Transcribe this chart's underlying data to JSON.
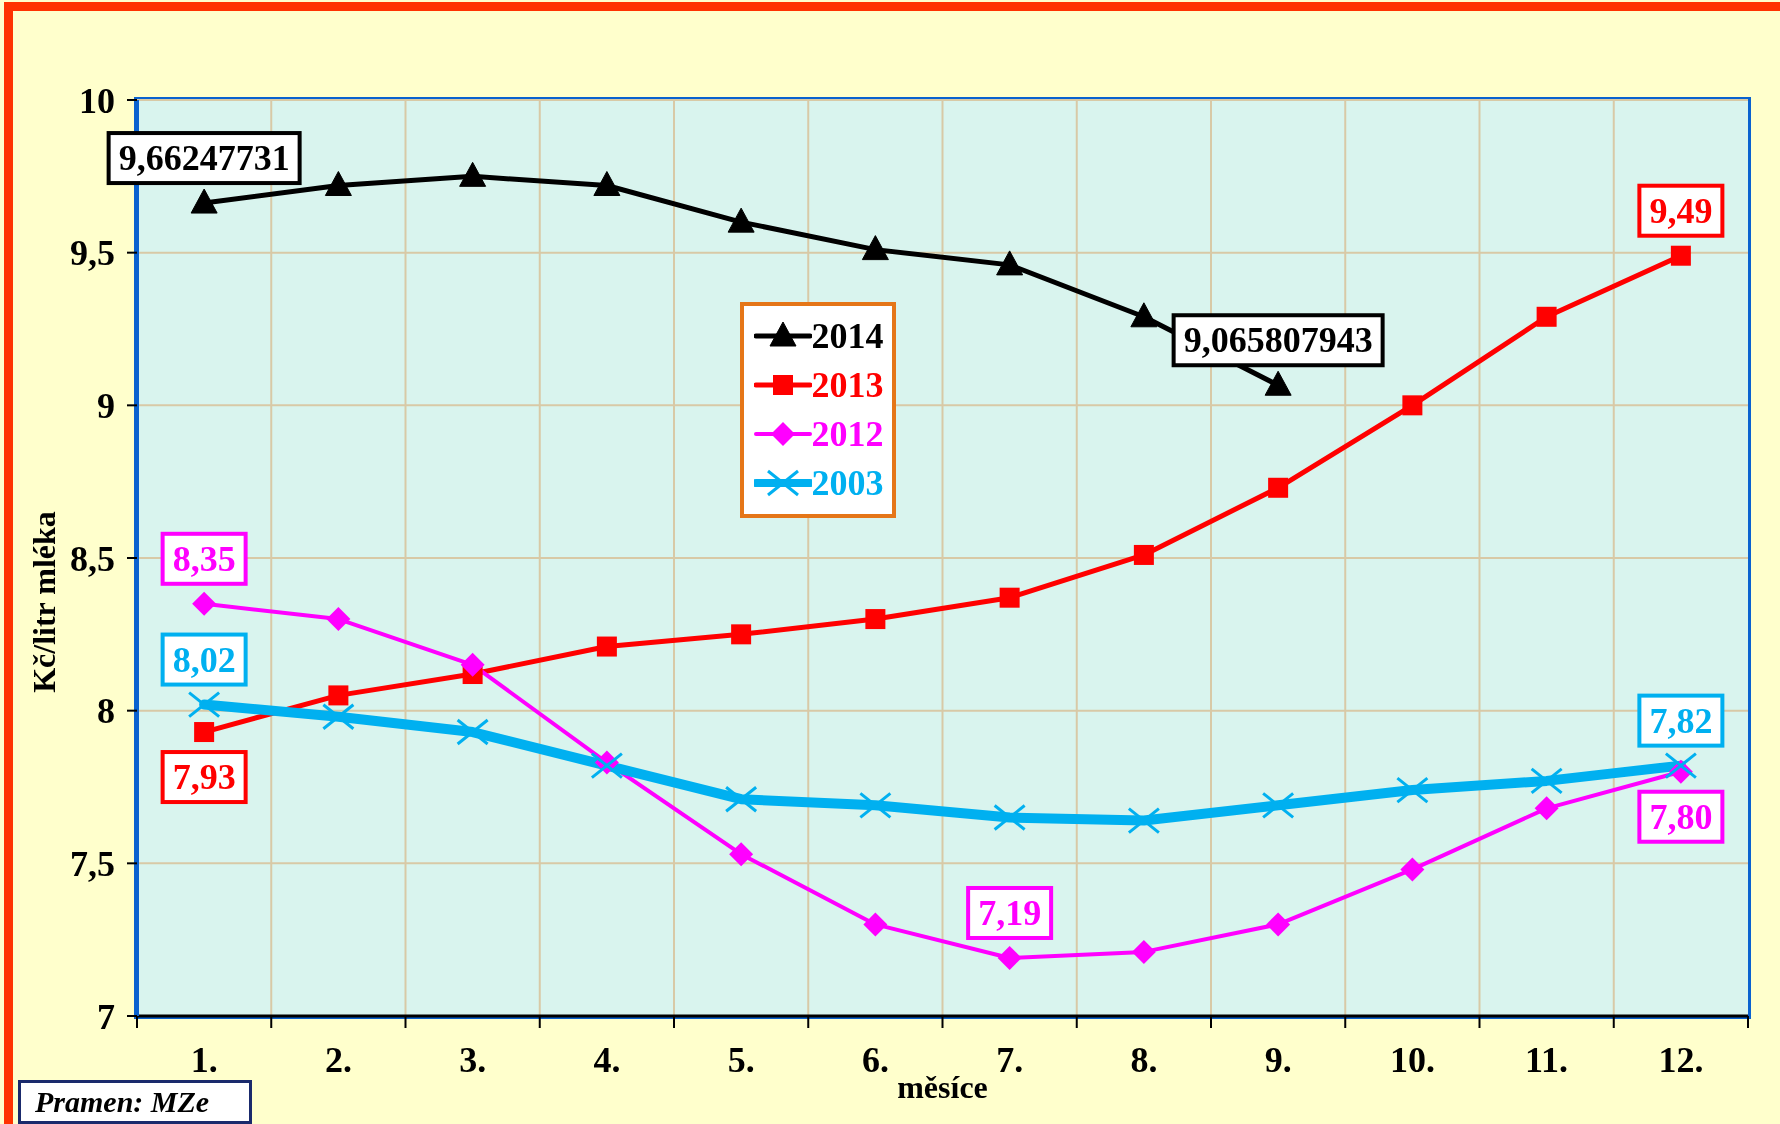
{
  "chart_data": {
    "type": "line",
    "xlabel": "měsíce",
    "ylabel": "Kč/litr mléka",
    "categories": [
      "1.",
      "2.",
      "3.",
      "4.",
      "5.",
      "6.",
      "7.",
      "8.",
      "9.",
      "10.",
      "11.",
      "12."
    ],
    "ylim": [
      7,
      10
    ],
    "yticks": [
      7,
      {
        "value": 7.5,
        "label": "7,5"
      },
      8,
      {
        "value": 8.5,
        "label": "8,5"
      },
      9,
      {
        "value": 9.5,
        "label": "9,5"
      },
      10
    ],
    "grid": true,
    "legend": "top",
    "line_style": "solid",
    "annotations": [
      "Pramen: MZe"
    ],
    "series": [
      {
        "name": "2014",
        "color": "#000000",
        "marker": "triangle",
        "values": [
          9.66247731,
          9.72,
          9.75,
          9.72,
          9.6,
          9.51,
          9.46,
          9.29,
          9.065807943,
          null,
          null,
          null
        ],
        "value_labels": [
          "9,66247731",
          null,
          null,
          null,
          null,
          null,
          null,
          null,
          "9,065807943",
          null,
          null,
          null
        ]
      },
      {
        "name": "2013",
        "color": "#ff0000",
        "marker": "square",
        "values": [
          7.93,
          8.05,
          8.12,
          8.21,
          8.25,
          8.3,
          8.37,
          8.51,
          8.73,
          9.0,
          9.29,
          9.49
        ],
        "value_labels": [
          "7,93",
          null,
          null,
          null,
          null,
          null,
          null,
          null,
          null,
          null,
          null,
          "9,49"
        ]
      },
      {
        "name": "2012",
        "color": "#ff00ff",
        "marker": "diamond",
        "values": [
          8.35,
          8.3,
          8.15,
          7.83,
          7.53,
          7.3,
          7.19,
          7.21,
          7.3,
          7.48,
          7.68,
          7.8
        ],
        "value_labels": [
          "8,35",
          null,
          null,
          null,
          null,
          null,
          "7,19",
          null,
          null,
          null,
          null,
          "7,80"
        ]
      },
      {
        "name": "2003",
        "color": "#00b0f0",
        "marker": "cross",
        "values": [
          8.02,
          7.98,
          7.93,
          7.82,
          7.71,
          7.69,
          7.65,
          7.64,
          7.69,
          7.74,
          7.77,
          7.82
        ],
        "value_labels": [
          "8,02",
          null,
          null,
          null,
          null,
          null,
          null,
          null,
          null,
          null,
          null,
          "7,82"
        ]
      }
    ]
  }
}
